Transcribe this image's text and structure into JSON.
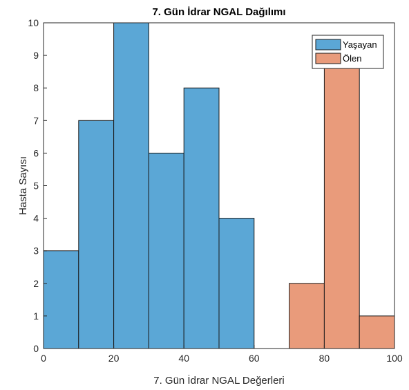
{
  "chart_data": {
    "type": "bar",
    "title": "7. Gün İdrar NGAL Dağılımı",
    "xlabel": "7. Gün İdrar NGAL Değerleri",
    "ylabel": "Hasta Sayısı",
    "xlim": [
      0,
      100
    ],
    "ylim": [
      0,
      10
    ],
    "xticks": [
      "0",
      "20",
      "40",
      "60",
      "80",
      "100"
    ],
    "yticks": [
      "0",
      "1",
      "2",
      "3",
      "4",
      "5",
      "6",
      "7",
      "8",
      "9",
      "10"
    ],
    "grid": false,
    "legend_position": "top-right",
    "bin_edges": [
      0,
      10,
      20,
      30,
      40,
      50,
      60,
      70,
      80,
      90,
      100
    ],
    "series": [
      {
        "name": "Yaşayan",
        "color": "#5ba7d6",
        "values": [
          3,
          7,
          10,
          6,
          8,
          4,
          0,
          0,
          0,
          0
        ]
      },
      {
        "name": "Ölen",
        "color": "#e99b7b",
        "values": [
          0,
          0,
          0,
          0,
          0,
          0,
          0,
          2,
          9,
          1
        ]
      }
    ]
  }
}
